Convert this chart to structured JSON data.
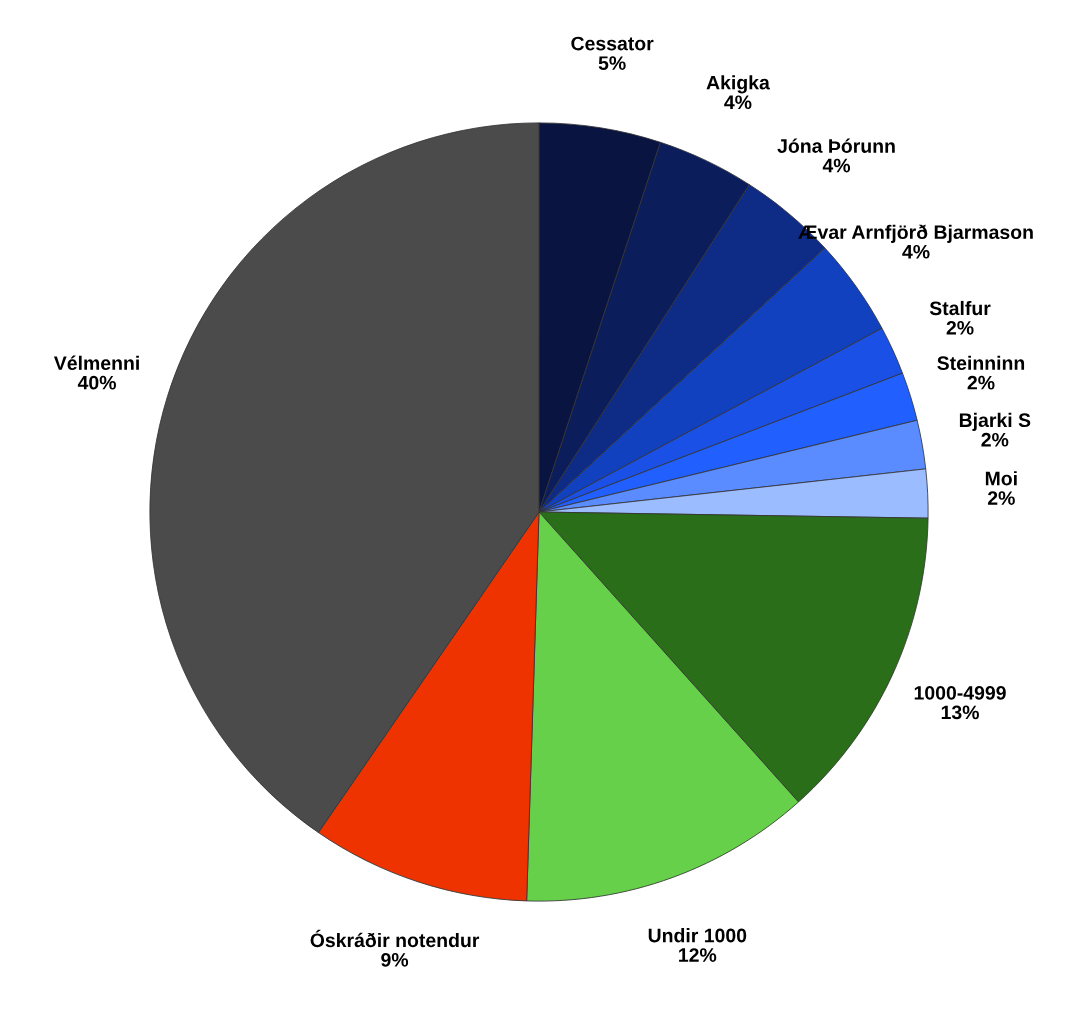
{
  "chart_data": {
    "type": "pie",
    "categories": [
      "Cessator",
      "Akigka",
      "Jóna Þórunn",
      "Ævar Arnfjörð Bjarmason",
      "Stalfur",
      "Steinninn",
      "Bjarki S",
      "Moi",
      "1000-4999",
      "Undir 1000",
      "Óskráðir notendur",
      "Vélmenni"
    ],
    "values": [
      5,
      4,
      4,
      4,
      2,
      2,
      2,
      2,
      13,
      12,
      9,
      40
    ],
    "value_labels": [
      "5%",
      "4%",
      "4%",
      "4%",
      "2%",
      "2%",
      "2%",
      "2%",
      "13%",
      "12%",
      "9%",
      "40%"
    ],
    "colors": [
      "#0a1440",
      "#0c1d5c",
      "#0e2b86",
      "#1241bf",
      "#1a50e6",
      "#2160ff",
      "#5a8cff",
      "#9bbcff",
      "#2a6e1a",
      "#66d04a",
      "#ee3300",
      "#4b4b4b"
    ],
    "legend": false
  }
}
